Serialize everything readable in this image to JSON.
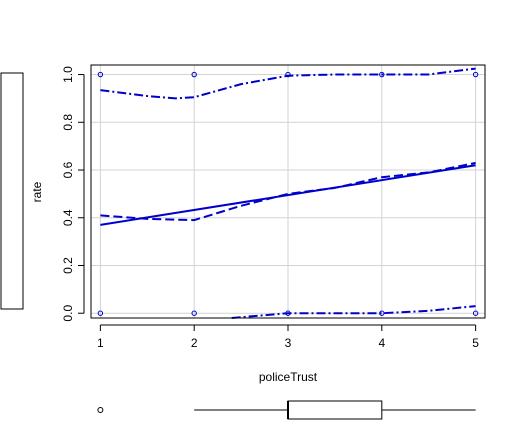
{
  "chart_data": {
    "type": "scatter",
    "title": "",
    "xlabel": "policeTrust",
    "ylabel": "rate",
    "xlim": [
      0.9,
      5.1
    ],
    "ylim": [
      -0.02,
      1.04
    ],
    "x_ticks": [
      1,
      2,
      3,
      4,
      5
    ],
    "y_ticks": [
      0.0,
      0.2,
      0.4,
      0.6,
      0.8,
      1.0
    ],
    "y_tick_labels": [
      "0.0",
      "0.2",
      "0.4",
      "0.6",
      "0.8",
      "1.0"
    ],
    "grid": true,
    "points": [
      {
        "x": 1,
        "y": 1.0
      },
      {
        "x": 2,
        "y": 1.0
      },
      {
        "x": 3,
        "y": 1.0
      },
      {
        "x": 4,
        "y": 1.0
      },
      {
        "x": 5,
        "y": 1.0
      },
      {
        "x": 1,
        "y": 0.0
      },
      {
        "x": 2,
        "y": 0.0
      },
      {
        "x": 3,
        "y": 0.0
      },
      {
        "x": 4,
        "y": 0.0
      },
      {
        "x": 5,
        "y": 0.0
      }
    ],
    "lines": [
      {
        "style": "solid",
        "x": [
          1,
          5
        ],
        "y": [
          0.37,
          0.62
        ]
      },
      {
        "style": "dashed",
        "x": [
          1,
          1.5,
          2,
          2.5,
          3,
          3.5,
          4,
          4.5,
          5
        ],
        "y": [
          0.41,
          0.395,
          0.39,
          0.45,
          0.5,
          0.525,
          0.57,
          0.59,
          0.63
        ]
      },
      {
        "style": "dashdot",
        "x": [
          1,
          1.5,
          1.8,
          2,
          2.5,
          3,
          3.5,
          4,
          4.5,
          5
        ],
        "y": [
          0.935,
          0.91,
          0.9,
          0.905,
          0.96,
          0.995,
          1.0,
          1.0,
          1.0,
          1.025
        ]
      },
      {
        "style": "dashdot",
        "x": [
          2.4,
          2.7,
          3,
          3.5,
          4,
          4.5,
          5
        ],
        "y": [
          -0.04,
          -0.01,
          0.0,
          0.0,
          0.0,
          0.01,
          0.03
        ]
      }
    ],
    "x_boxplot": {
      "min": 2,
      "q1": 3,
      "median": 3,
      "q3": 4,
      "max": 5,
      "outliers": [
        1
      ]
    },
    "y_boxplot": {
      "present": true
    },
    "colors": {
      "series": "#0000cd",
      "grid": "#d3d3d3",
      "axis": "#000000"
    }
  }
}
